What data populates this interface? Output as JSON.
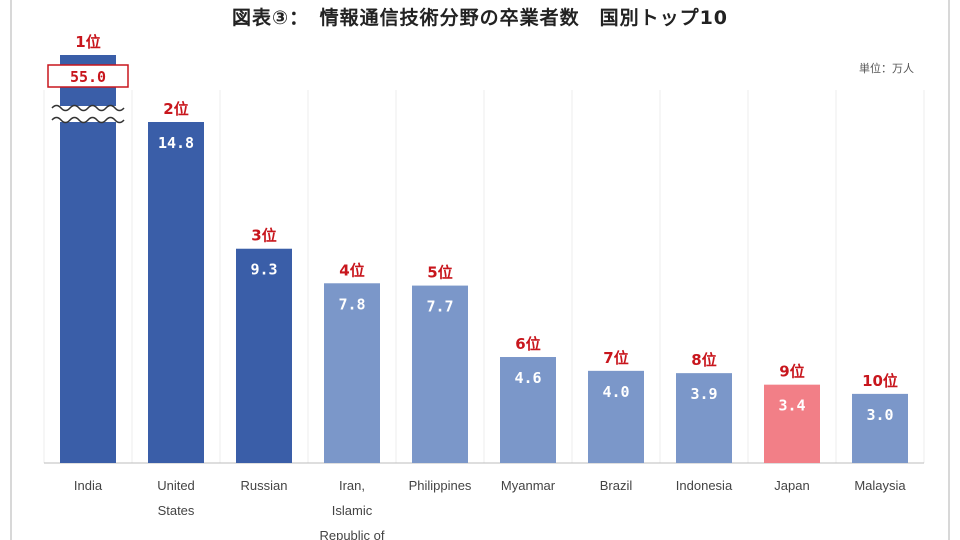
{
  "title": "図表③：　情報通信技術分野の卒業者数　国別トップ10",
  "unit_label": "単位：万人",
  "colors": {
    "dark_blue": "#3a5ea8",
    "light_blue": "#7b97c9",
    "highlight": "#f27f87",
    "rank": "#c8161d"
  },
  "chart_data": {
    "type": "bar",
    "title": "図表③：　情報通信技術分野の卒業者数　国別トップ10",
    "unit": "単位：万人",
    "categories": [
      "India",
      "United States",
      "Russian",
      "Iran, Islamic Republic of",
      "Philippines",
      "Myanmar",
      "Brazil",
      "Indonesia",
      "Japan",
      "Malaysia"
    ],
    "category_lines": [
      [
        "India"
      ],
      [
        "United",
        "States"
      ],
      [
        "Russian"
      ],
      [
        "Iran,",
        "Islamic",
        "Republic of"
      ],
      [
        "Philippines"
      ],
      [
        "Myanmar"
      ],
      [
        "Brazil"
      ],
      [
        "Indonesia"
      ],
      [
        "Japan"
      ],
      [
        "Malaysia"
      ]
    ],
    "values": [
      55.0,
      14.8,
      9.3,
      7.8,
      7.7,
      4.6,
      4.0,
      3.9,
      3.4,
      3.0
    ],
    "value_labels": [
      "55.0",
      "14.8",
      "9.3",
      "7.8",
      "7.7",
      "4.6",
      "4.0",
      "3.9",
      "3.4",
      "3.0"
    ],
    "ranks": [
      "1位",
      "2位",
      "3位",
      "4位",
      "5位",
      "6位",
      "7位",
      "8位",
      "9位",
      "10位"
    ],
    "bar_colors": [
      "dark_blue",
      "dark_blue",
      "dark_blue",
      "light_blue",
      "light_blue",
      "light_blue",
      "light_blue",
      "light_blue",
      "highlight",
      "light_blue"
    ],
    "broken_axis_bar": "India",
    "ylim": [
      0,
      15
    ],
    "grid": true,
    "legend": "none"
  }
}
